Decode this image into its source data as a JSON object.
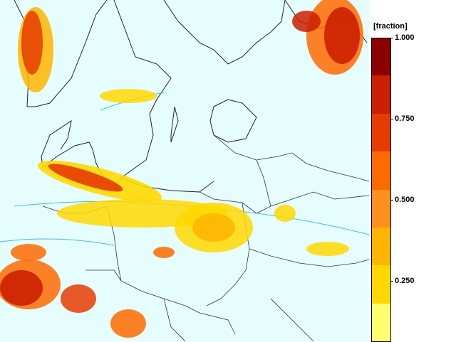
{
  "map": {
    "type": "fraction-field-over-europe",
    "region": "Baltic Sea / Central-Eastern Europe",
    "background_color": "#e6fdfd",
    "border_color": "#000000",
    "contour_color": "#39c0e6"
  },
  "legend": {
    "title": "[fraction]",
    "ticks": [
      {
        "label": "1.000",
        "value": 1.0
      },
      {
        "label": "0.750",
        "value": 0.75
      },
      {
        "label": "0.500",
        "value": 0.5
      },
      {
        "label": "0.250",
        "value": 0.25
      }
    ],
    "colors": [
      "#8b0000",
      "#cc1f00",
      "#e63c00",
      "#ff6a00",
      "#ff8f1f",
      "#ffb400",
      "#ffd800",
      "#ffff70"
    ]
  }
}
